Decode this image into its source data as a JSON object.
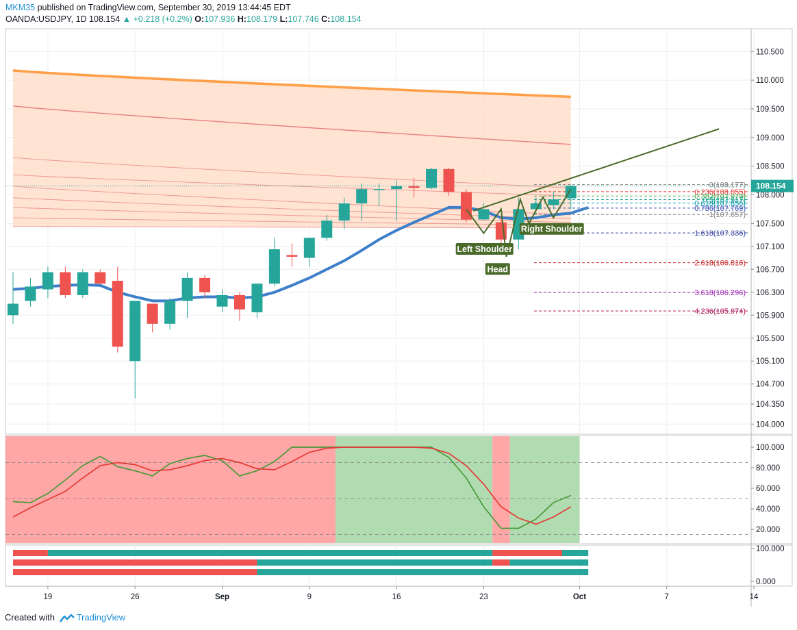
{
  "header": {
    "author": "MKM35",
    "published_text": "published on TradingView.com, September 30, 2019 13:44:45 EDT",
    "symbol": "OANDA:USDJPY, 1D",
    "last": "108.154",
    "change_arrow": "▲",
    "change": "+0.218 (+0.2%)",
    "o_label": "O:",
    "o_value": "107.936",
    "h_label": "H:",
    "h_value": "108.179",
    "l_label": "L:",
    "l_value": "107.746",
    "c_label": "C:",
    "c_value": "108.154"
  },
  "footer": {
    "created_with": "Created with",
    "brand": "TradingView"
  },
  "colors": {
    "up": "#26a69a",
    "down": "#ef5350",
    "ema_thick": "#3d7fc9",
    "ema_orange": "#ff9f47",
    "fill_band": "#ffd9c4",
    "stoch_k": "#4a9a3a",
    "stoch_d": "#e53935",
    "stoch_bg_bear": "#ffa6a6",
    "stoch_bg_bull": "#b1dcb1",
    "pattern": "#4a6b2a"
  },
  "chart_data": [
    {
      "type": "candlestick",
      "symbol": "OANDA:USDJPY",
      "interval": "1D",
      "x_ticks": [
        "19",
        "26",
        "Sep",
        "9",
        "16",
        "23",
        "Oct",
        "7",
        "14"
      ],
      "y_ticks": [
        "110.500",
        "110.000",
        "109.500",
        "109.000",
        "108.500",
        "108.000",
        "107.500",
        "107.100",
        "106.700",
        "106.300",
        "105.900",
        "105.500",
        "105.100",
        "104.700",
        "104.350",
        "104.000"
      ],
      "ylim": [
        104.0,
        110.6
      ],
      "last_price_label": "108.154",
      "ohlc": [
        {
          "o": 105.9,
          "h": 106.65,
          "l": 105.75,
          "c": 106.1
        },
        {
          "o": 106.15,
          "h": 106.55,
          "l": 106.05,
          "c": 106.4
        },
        {
          "o": 106.35,
          "h": 106.75,
          "l": 106.2,
          "c": 106.65
        },
        {
          "o": 106.65,
          "h": 106.75,
          "l": 106.2,
          "c": 106.25
        },
        {
          "o": 106.25,
          "h": 106.7,
          "l": 106.2,
          "c": 106.65
        },
        {
          "o": 106.65,
          "h": 106.7,
          "l": 106.45,
          "c": 106.45
        },
        {
          "o": 106.5,
          "h": 106.75,
          "l": 105.25,
          "c": 105.35
        },
        {
          "o": 105.1,
          "h": 106.1,
          "l": 104.45,
          "c": 106.15
        },
        {
          "o": 106.1,
          "h": 106.1,
          "l": 105.6,
          "c": 105.75
        },
        {
          "o": 105.75,
          "h": 106.2,
          "l": 105.65,
          "c": 106.15
        },
        {
          "o": 106.15,
          "h": 106.65,
          "l": 105.85,
          "c": 106.55
        },
        {
          "o": 106.55,
          "h": 106.6,
          "l": 106.2,
          "c": 106.3
        },
        {
          "o": 106.05,
          "h": 106.35,
          "l": 105.95,
          "c": 106.25
        },
        {
          "o": 106.25,
          "h": 106.3,
          "l": 105.8,
          "c": 106.0
        },
        {
          "o": 105.95,
          "h": 106.45,
          "l": 105.85,
          "c": 106.45
        },
        {
          "o": 106.45,
          "h": 107.25,
          "l": 106.4,
          "c": 107.05
        },
        {
          "o": 106.95,
          "h": 107.15,
          "l": 106.75,
          "c": 106.92
        },
        {
          "o": 106.9,
          "h": 107.25,
          "l": 106.75,
          "c": 107.25
        },
        {
          "o": 107.25,
          "h": 107.65,
          "l": 107.2,
          "c": 107.55
        },
        {
          "o": 107.55,
          "h": 107.95,
          "l": 107.4,
          "c": 107.85
        },
        {
          "o": 107.85,
          "h": 108.2,
          "l": 107.55,
          "c": 108.1
        },
        {
          "o": 108.1,
          "h": 108.2,
          "l": 107.8,
          "c": 108.1
        },
        {
          "o": 108.1,
          "h": 108.25,
          "l": 107.55,
          "c": 108.15
        },
        {
          "o": 108.15,
          "h": 108.3,
          "l": 107.95,
          "c": 108.12
        },
        {
          "o": 108.12,
          "h": 108.47,
          "l": 108.1,
          "c": 108.45
        },
        {
          "o": 108.45,
          "h": 108.47,
          "l": 107.98,
          "c": 108.05
        },
        {
          "o": 108.05,
          "h": 108.1,
          "l": 107.52,
          "c": 107.57
        },
        {
          "o": 107.57,
          "h": 107.85,
          "l": 107.55,
          "c": 107.75
        },
        {
          "o": 107.52,
          "h": 107.62,
          "l": 107.15,
          "c": 107.22
        },
        {
          "o": 107.22,
          "h": 107.95,
          "l": 107.05,
          "c": 107.75
        },
        {
          "o": 107.75,
          "h": 107.95,
          "l": 107.65,
          "c": 107.85
        },
        {
          "o": 107.82,
          "h": 108.05,
          "l": 107.75,
          "c": 107.92
        },
        {
          "o": 107.94,
          "h": 108.18,
          "l": 107.75,
          "c": 108.154
        }
      ],
      "ema_thick": [
        106.35,
        106.37,
        106.4,
        106.42,
        106.43,
        106.42,
        106.3,
        106.22,
        106.15,
        106.15,
        106.2,
        106.22,
        106.22,
        106.2,
        106.22,
        106.3,
        106.42,
        106.55,
        106.7,
        106.85,
        107.03,
        107.22,
        107.38,
        107.52,
        107.65,
        107.78,
        107.78,
        107.72,
        107.6,
        107.58,
        107.6,
        107.65,
        107.68,
        107.78
      ],
      "ema_orange": [
        110.17,
        109.71
      ],
      "ema_bands": [
        [
          109.55,
          108.88
        ],
        [
          108.65,
          108.12
        ],
        [
          108.35,
          107.98
        ],
        [
          108.15,
          107.65
        ],
        [
          107.95,
          107.58
        ],
        [
          107.78,
          107.52
        ],
        [
          107.6,
          107.47
        ],
        [
          107.45,
          107.42
        ]
      ],
      "fibonacci": [
        {
          "ratio": "0",
          "price": 108.177,
          "label": "0(108.177)",
          "color": "#808080"
        },
        {
          "ratio": "0.236",
          "price": 108.055,
          "label": "0.236(108.055)",
          "color": "#e53935"
        },
        {
          "ratio": "0.382",
          "price": 107.979,
          "label": "0.382(107.979)",
          "color": "#4caf50"
        },
        {
          "ratio": "0.5",
          "price": 107.917,
          "label": "0.5(107.917)",
          "color": "#26a69a"
        },
        {
          "ratio": "0.618",
          "price": 107.856,
          "label": "0.618(107.856)",
          "color": "#0097a7"
        },
        {
          "ratio": "0.786",
          "price": 107.769,
          "label": "0.786(107.769)",
          "color": "#3f51b5"
        },
        {
          "ratio": "1",
          "price": 107.657,
          "label": "1(107.657)",
          "color": "#808080"
        },
        {
          "ratio": "1.618",
          "price": 107.336,
          "label": "1.618(107.336)",
          "color": "#303f9f"
        },
        {
          "ratio": "2.618",
          "price": 106.816,
          "label": "2.618(106.816)",
          "color": "#c62828"
        },
        {
          "ratio": "3.618",
          "price": 106.296,
          "label": "3.618(106.296)",
          "color": "#9c27b0"
        },
        {
          "ratio": "4.236",
          "price": 105.974,
          "label": "4.236(105.974)",
          "color": "#ad1457"
        }
      ],
      "pattern": {
        "name": "Head and Shoulders",
        "labels": [
          "Left Shoulder",
          "Head",
          "Right Shoulder"
        ],
        "points": [
          [
            26,
            107.75
          ],
          [
            27,
            107.33
          ],
          [
            28,
            107.75
          ],
          [
            28.3,
            106.92
          ],
          [
            29.1,
            107.92
          ],
          [
            29.6,
            107.5
          ],
          [
            30.4,
            107.96
          ],
          [
            31,
            107.6
          ],
          [
            32,
            108.1
          ]
        ],
        "trendline": [
          [
            26.4,
            107.72
          ],
          [
            40.5,
            109.15
          ]
        ]
      }
    },
    {
      "type": "line",
      "name": "stochastic",
      "y_ticks": [
        "100.000",
        "80.000",
        "60.000",
        "40.000",
        "20.000"
      ],
      "ylim": [
        7,
        107
      ],
      "levels": [
        85,
        50,
        15
      ],
      "series": [
        {
          "values": [
            47,
            46,
            55,
            68,
            82,
            91,
            81,
            77,
            72,
            84,
            89,
            92,
            87,
            72,
            77,
            86,
            100,
            100,
            100,
            100,
            100,
            100,
            100,
            100,
            100,
            90,
            70,
            42,
            21,
            21,
            30,
            46,
            53
          ]
        },
        {
          "values": [
            32,
            41,
            49,
            57,
            70,
            82,
            85,
            83,
            77,
            78,
            82,
            87,
            89,
            85,
            79,
            78,
            86,
            95,
            99,
            100,
            100,
            100,
            100,
            100,
            99,
            94,
            82,
            64,
            42,
            31,
            25,
            32,
            42
          ]
        }
      ],
      "background_regions": [
        {
          "state": "bear",
          "from": -0.5,
          "to": 18.5
        },
        {
          "state": "bull",
          "from": 18.5,
          "to": 27.5
        },
        {
          "state": "bear",
          "from": 27.5,
          "to": 28.5
        },
        {
          "state": "bull",
          "from": 28.5,
          "to": 32.5
        }
      ]
    },
    {
      "type": "bar",
      "name": "trend-strip",
      "y_ticks": [
        "100.000",
        "0.000"
      ],
      "rows": [
        [
          {
            "state": "bear",
            "from": 0,
            "to": 2
          },
          {
            "state": "bull",
            "from": 2,
            "to": 27.5
          },
          {
            "state": "bear",
            "from": 27.5,
            "to": 31.5
          },
          {
            "state": "bull",
            "from": 31.5,
            "to": 33
          }
        ],
        [
          {
            "state": "bear",
            "from": 0,
            "to": 14
          },
          {
            "state": "bull",
            "from": 14,
            "to": 27.5
          },
          {
            "state": "bear",
            "from": 27.5,
            "to": 28.5
          },
          {
            "state": "bull",
            "from": 28.5,
            "to": 33
          }
        ],
        [
          {
            "state": "bear",
            "from": 0,
            "to": 14
          },
          {
            "state": "bull",
            "from": 14,
            "to": 33
          }
        ]
      ]
    }
  ]
}
